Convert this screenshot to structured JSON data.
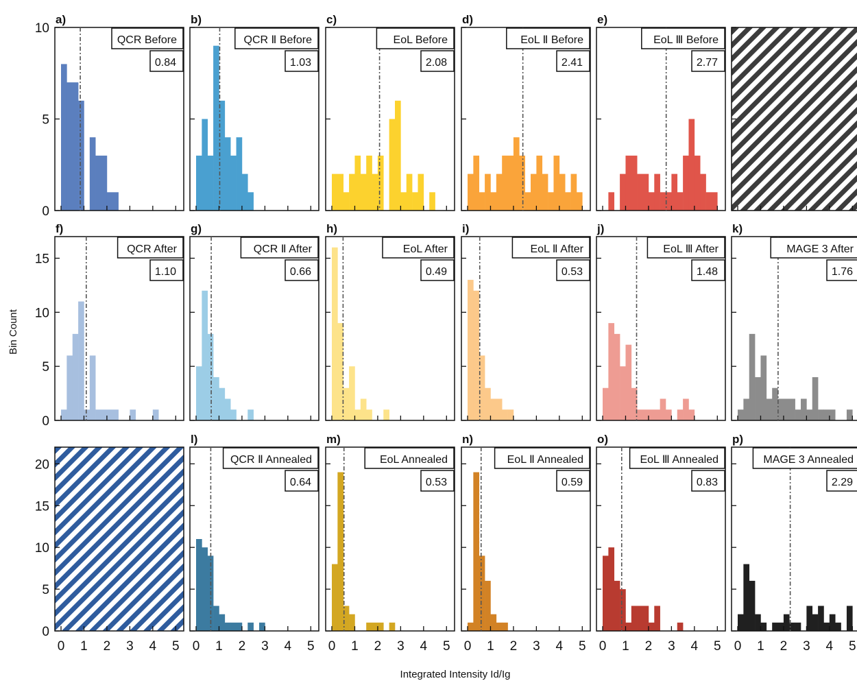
{
  "figure": {
    "xlabel": "Integrated  Intensity Id/Ig",
    "ylabel": "Bin Count",
    "colors": {
      "qcr_before": "#5b7fbe",
      "qcr2_before": "#4aa0d0",
      "eol_before": "#fcd22e",
      "eol2_before": "#faa43a",
      "eol3_before": "#e0554a",
      "qcr_after": "#a7bfdf",
      "qcr2_after": "#9ccde6",
      "eol_after": "#fde38a",
      "eol2_after": "#fcc98a",
      "eol3_after": "#ee9c93",
      "mage3_after": "#8c8c8c",
      "qcr2_annealed": "#3c7ba0",
      "eol_annealed": "#d3a722",
      "eol2_annealed": "#d28225",
      "eol3_annealed": "#b83b30",
      "mage3_annealed": "#202020",
      "hatch_gray": "#3c3c3c",
      "hatch_blue": "#2f5c9e"
    },
    "rows": [
      {
        "ylim": [
          0,
          10
        ],
        "yticks": [
          0,
          5,
          10
        ]
      },
      {
        "ylim": [
          0,
          17
        ],
        "yticks": [
          0,
          5,
          10,
          15
        ]
      },
      {
        "ylim": [
          0,
          22
        ],
        "yticks": [
          0,
          5,
          10,
          15,
          20
        ]
      }
    ],
    "xticks": [
      0,
      1,
      2,
      3,
      4,
      5
    ]
  },
  "chart_data": [
    {
      "type": "bar",
      "panel": "a)",
      "row": 0,
      "col": 0,
      "label": "QCR Before",
      "mean_label": "0.84",
      "mean": 0.84,
      "color": "#5b7fbe",
      "bins": [
        [
          0,
          0.25,
          8
        ],
        [
          0.25,
          0.75,
          7
        ],
        [
          0.75,
          1.0,
          6
        ],
        [
          1.25,
          1.5,
          4
        ],
        [
          1.5,
          2.0,
          3
        ],
        [
          2.0,
          2.5,
          1
        ]
      ]
    },
    {
      "type": "bar",
      "panel": "b)",
      "row": 0,
      "col": 1,
      "label": "QCR Ⅱ Before",
      "mean_label": "1.03",
      "mean": 1.03,
      "color": "#4aa0d0",
      "bins": [
        [
          0,
          0.25,
          3
        ],
        [
          0.25,
          0.5,
          5
        ],
        [
          0.5,
          0.75,
          3
        ],
        [
          0.75,
          1.0,
          9
        ],
        [
          1.0,
          1.25,
          6
        ],
        [
          1.25,
          1.5,
          4
        ],
        [
          1.5,
          1.75,
          3
        ],
        [
          1.75,
          2.0,
          4
        ],
        [
          2.0,
          2.25,
          2
        ],
        [
          2.25,
          2.5,
          1
        ]
      ]
    },
    {
      "type": "bar",
      "panel": "c)",
      "row": 0,
      "col": 2,
      "label": "EoL  Before",
      "mean_label": "2.08",
      "mean": 2.08,
      "color": "#fcd22e",
      "bins": [
        [
          0,
          0.5,
          2
        ],
        [
          0.5,
          0.75,
          1
        ],
        [
          0.75,
          1.0,
          2
        ],
        [
          1.0,
          1.25,
          3
        ],
        [
          1.25,
          1.5,
          2
        ],
        [
          1.5,
          1.75,
          3
        ],
        [
          1.75,
          2.0,
          2
        ],
        [
          2.0,
          2.25,
          3
        ],
        [
          2.5,
          2.75,
          5
        ],
        [
          2.75,
          3.0,
          6
        ],
        [
          3.0,
          3.25,
          1
        ],
        [
          3.25,
          3.5,
          2
        ],
        [
          3.5,
          3.75,
          1
        ],
        [
          3.75,
          4.0,
          2
        ],
        [
          4.25,
          4.5,
          1
        ]
      ]
    },
    {
      "type": "bar",
      "panel": "d)",
      "row": 0,
      "col": 3,
      "label": "EoL Ⅱ Before",
      "mean_label": "2.41",
      "mean": 2.41,
      "color": "#faa43a",
      "bins": [
        [
          0,
          0.25,
          2
        ],
        [
          0.25,
          0.5,
          3
        ],
        [
          0.5,
          0.75,
          1
        ],
        [
          0.75,
          1.0,
          2
        ],
        [
          1.0,
          1.25,
          1
        ],
        [
          1.25,
          1.5,
          2
        ],
        [
          1.5,
          2.0,
          3
        ],
        [
          2.0,
          2.25,
          4
        ],
        [
          2.25,
          2.5,
          3
        ],
        [
          2.5,
          2.75,
          1
        ],
        [
          2.75,
          3.0,
          2
        ],
        [
          3.0,
          3.25,
          3
        ],
        [
          3.25,
          3.5,
          2
        ],
        [
          3.5,
          3.75,
          1
        ],
        [
          3.75,
          4.0,
          3
        ],
        [
          4.0,
          4.25,
          2
        ],
        [
          4.25,
          4.5,
          1
        ],
        [
          4.5,
          4.75,
          2
        ],
        [
          4.75,
          5.0,
          1
        ]
      ]
    },
    {
      "type": "bar",
      "panel": "e)",
      "row": 0,
      "col": 4,
      "label": "EoL Ⅲ Before",
      "mean_label": "2.77",
      "mean": 2.77,
      "color": "#e0554a",
      "bins": [
        [
          0.25,
          0.5,
          1
        ],
        [
          0.5,
          0.75,
          0
        ],
        [
          0.75,
          1.0,
          2
        ],
        [
          1.0,
          1.5,
          3
        ],
        [
          1.5,
          2.0,
          2
        ],
        [
          2.0,
          2.25,
          1
        ],
        [
          2.25,
          2.5,
          2
        ],
        [
          2.5,
          3.0,
          1
        ],
        [
          3.0,
          3.25,
          2
        ],
        [
          3.25,
          3.5,
          1
        ],
        [
          3.5,
          3.75,
          3
        ],
        [
          3.75,
          4.0,
          5
        ],
        [
          4.0,
          4.25,
          3
        ],
        [
          4.25,
          4.5,
          2
        ],
        [
          4.5,
          5.0,
          1
        ]
      ]
    },
    {
      "type": "hatched",
      "panel": "",
      "row": 0,
      "col": 5,
      "color": "#3c3c3c"
    },
    {
      "type": "bar",
      "panel": "f)",
      "row": 1,
      "col": 0,
      "label": "QCR After",
      "mean_label": "1.10",
      "mean": 1.1,
      "color": "#a7bfdf",
      "bins": [
        [
          0,
          0.25,
          1
        ],
        [
          0.25,
          0.5,
          6
        ],
        [
          0.5,
          0.75,
          8
        ],
        [
          0.75,
          1.0,
          11
        ],
        [
          1.0,
          1.25,
          1
        ],
        [
          1.25,
          1.5,
          6
        ],
        [
          1.5,
          2.5,
          1
        ],
        [
          3.0,
          3.25,
          1
        ],
        [
          3.75,
          4.0,
          0
        ],
        [
          4.0,
          4.25,
          1
        ]
      ]
    },
    {
      "type": "bar",
      "panel": "g)",
      "row": 1,
      "col": 1,
      "label": "QCR Ⅱ After",
      "mean_label": "0.66",
      "mean": 0.66,
      "color": "#9ccde6",
      "bins": [
        [
          0,
          0.25,
          5
        ],
        [
          0.25,
          0.5,
          12
        ],
        [
          0.5,
          0.75,
          8
        ],
        [
          0.75,
          1.0,
          4
        ],
        [
          1.0,
          1.25,
          3
        ],
        [
          1.25,
          1.5,
          2
        ],
        [
          1.5,
          1.75,
          1
        ],
        [
          2.25,
          2.5,
          1
        ]
      ]
    },
    {
      "type": "bar",
      "panel": "h)",
      "row": 1,
      "col": 2,
      "label": "EoL  After",
      "mean_label": "0.49",
      "mean": 0.49,
      "color": "#fde38a",
      "bins": [
        [
          0,
          0.25,
          16
        ],
        [
          0.25,
          0.5,
          9
        ],
        [
          0.5,
          0.75,
          3
        ],
        [
          0.75,
          1.0,
          5
        ],
        [
          1.0,
          1.25,
          1
        ],
        [
          1.25,
          1.5,
          2
        ],
        [
          1.5,
          1.75,
          1
        ],
        [
          2.25,
          2.5,
          1
        ]
      ]
    },
    {
      "type": "bar",
      "panel": "i)",
      "row": 1,
      "col": 3,
      "label": "EoL Ⅱ After",
      "mean_label": "0.53",
      "mean": 0.53,
      "color": "#fcc98a",
      "bins": [
        [
          0,
          0.25,
          13
        ],
        [
          0.25,
          0.5,
          12
        ],
        [
          0.5,
          0.75,
          6
        ],
        [
          0.75,
          1.0,
          3
        ],
        [
          1.0,
          1.5,
          2
        ],
        [
          1.5,
          1.75,
          1
        ],
        [
          1.75,
          2.0,
          1
        ]
      ]
    },
    {
      "type": "bar",
      "panel": "j)",
      "row": 1,
      "col": 4,
      "label": "EoL Ⅲ After",
      "mean_label": "1.48",
      "mean": 1.48,
      "color": "#ee9c93",
      "bins": [
        [
          0,
          0.25,
          3
        ],
        [
          0.25,
          0.5,
          9
        ],
        [
          0.5,
          0.75,
          8
        ],
        [
          0.75,
          1.0,
          5
        ],
        [
          1.0,
          1.25,
          7
        ],
        [
          1.25,
          1.5,
          3
        ],
        [
          1.5,
          2.5,
          1
        ],
        [
          2.5,
          2.75,
          2
        ],
        [
          2.75,
          3.0,
          1
        ],
        [
          3.25,
          3.5,
          1
        ],
        [
          3.5,
          3.75,
          2
        ],
        [
          3.75,
          4.0,
          1
        ]
      ]
    },
    {
      "type": "bar",
      "panel": "k)",
      "row": 1,
      "col": 5,
      "label": "MAGE  3 After",
      "mean_label": "1.76",
      "mean": 1.76,
      "color": "#8c8c8c",
      "bins": [
        [
          0,
          0.25,
          1
        ],
        [
          0.25,
          0.5,
          2
        ],
        [
          0.5,
          0.75,
          8
        ],
        [
          0.75,
          1.0,
          4
        ],
        [
          1.0,
          1.25,
          6
        ],
        [
          1.25,
          1.5,
          2
        ],
        [
          1.5,
          1.75,
          3
        ],
        [
          1.75,
          2.0,
          2
        ],
        [
          2.0,
          2.5,
          2
        ],
        [
          2.5,
          2.75,
          1
        ],
        [
          2.75,
          3.0,
          2
        ],
        [
          3.0,
          3.25,
          1
        ],
        [
          3.25,
          3.5,
          4
        ],
        [
          3.5,
          3.75,
          1
        ],
        [
          3.75,
          4.25,
          1
        ],
        [
          4.75,
          5.0,
          1
        ]
      ]
    },
    {
      "type": "hatched",
      "panel": "",
      "row": 2,
      "col": 0,
      "color": "#2f5c9e"
    },
    {
      "type": "bar",
      "panel": "l)",
      "row": 2,
      "col": 1,
      "label": "QCR Ⅱ Annealed",
      "mean_label": "0.64",
      "mean": 0.64,
      "color": "#3c7ba0",
      "bins": [
        [
          0,
          0.25,
          11
        ],
        [
          0.25,
          0.5,
          10
        ],
        [
          0.5,
          0.75,
          9
        ],
        [
          0.75,
          1.0,
          3
        ],
        [
          1.0,
          1.25,
          2
        ],
        [
          1.25,
          1.5,
          1
        ],
        [
          1.5,
          2.0,
          1
        ],
        [
          2.25,
          2.5,
          1
        ],
        [
          2.75,
          3.0,
          1
        ]
      ]
    },
    {
      "type": "bar",
      "panel": "m)",
      "row": 2,
      "col": 2,
      "label": "EoL  Annealed",
      "mean_label": "0.53",
      "mean": 0.53,
      "color": "#d3a722",
      "bins": [
        [
          0,
          0.25,
          8
        ],
        [
          0.25,
          0.5,
          19
        ],
        [
          0.5,
          0.75,
          3
        ],
        [
          0.75,
          1.0,
          2
        ],
        [
          1.0,
          1.25,
          0
        ],
        [
          1.25,
          1.5,
          0
        ],
        [
          1.5,
          2.25,
          1
        ],
        [
          2.5,
          2.75,
          1
        ]
      ]
    },
    {
      "type": "bar",
      "panel": "n)",
      "row": 2,
      "col": 3,
      "label": "EoL Ⅱ Annealed",
      "mean_label": "0.59",
      "mean": 0.59,
      "color": "#d28225",
      "bins": [
        [
          0,
          0.25,
          1
        ],
        [
          0.25,
          0.5,
          19
        ],
        [
          0.5,
          0.75,
          9
        ],
        [
          0.75,
          1.0,
          6
        ],
        [
          1.0,
          1.25,
          2
        ],
        [
          1.25,
          1.5,
          1
        ],
        [
          1.5,
          1.75,
          1
        ]
      ]
    },
    {
      "type": "bar",
      "panel": "o)",
      "row": 2,
      "col": 4,
      "label": "EoL Ⅲ Annealed",
      "mean_label": "0.83",
      "mean": 0.83,
      "color": "#b83b30",
      "bins": [
        [
          0,
          0.25,
          9
        ],
        [
          0.25,
          0.5,
          10
        ],
        [
          0.5,
          0.75,
          6
        ],
        [
          0.75,
          1.0,
          5
        ],
        [
          1.0,
          1.25,
          1
        ],
        [
          1.25,
          1.5,
          3
        ],
        [
          1.5,
          2.0,
          3
        ],
        [
          2.0,
          2.25,
          1
        ],
        [
          2.25,
          2.5,
          3
        ],
        [
          3.25,
          3.5,
          1
        ]
      ]
    },
    {
      "type": "bar",
      "panel": "p)",
      "row": 2,
      "col": 5,
      "label": "MAGE  3 Annealed",
      "mean_label": "2.29",
      "mean": 2.29,
      "color": "#202020",
      "bins": [
        [
          0,
          0.25,
          2
        ],
        [
          0.25,
          0.5,
          8
        ],
        [
          0.5,
          0.75,
          6
        ],
        [
          0.75,
          1.0,
          2
        ],
        [
          1.0,
          1.25,
          1
        ],
        [
          1.25,
          1.5,
          0
        ],
        [
          1.5,
          2.0,
          1
        ],
        [
          2.0,
          2.25,
          2
        ],
        [
          2.25,
          2.5,
          1
        ],
        [
          2.5,
          2.75,
          1
        ],
        [
          3.0,
          3.25,
          3
        ],
        [
          3.25,
          3.5,
          2
        ],
        [
          3.5,
          3.75,
          3
        ],
        [
          3.75,
          4.0,
          1
        ],
        [
          4.0,
          4.25,
          2
        ],
        [
          4.25,
          4.5,
          1
        ],
        [
          4.75,
          5.0,
          3
        ]
      ]
    }
  ]
}
